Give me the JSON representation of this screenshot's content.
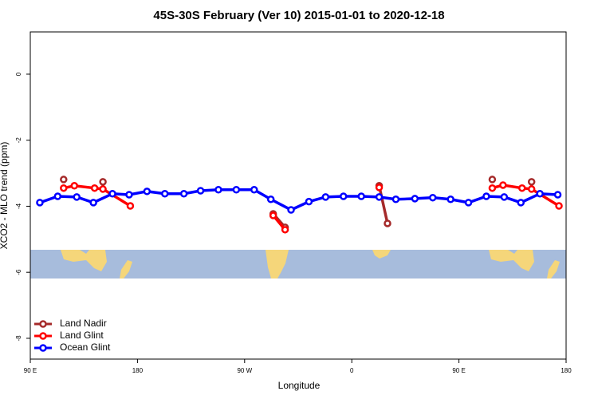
{
  "chart_data": {
    "type": "line",
    "title": "45S-30S February (Ver 10)   2015-01-01 to 2020-12-18",
    "x_label": "Longitude",
    "y_label": "XCO2 - MLO trend (ppm)",
    "xlim": [
      90,
      540
    ],
    "ylim": [
      -8.63,
      1.28
    ],
    "xticks": [
      {
        "value": 90,
        "label": "90 E"
      },
      {
        "value": 180,
        "label": "180"
      },
      {
        "value": 270,
        "label": "90 W"
      },
      {
        "value": 360,
        "label": "0"
      },
      {
        "value": 450,
        "label": "90 E"
      },
      {
        "value": 540,
        "label": "180"
      }
    ],
    "yticks": [
      -8,
      -6,
      -4,
      -2,
      0
    ],
    "legend": "bottom-left",
    "series": [
      {
        "name": "Land Nadir",
        "color": "#a52a2a",
        "x": [
          118,
          null,
          151,
          null,
          294,
          304,
          null,
          383,
          390,
          null,
          478,
          null,
          511
        ],
        "values": [
          -3.19,
          null,
          -3.26,
          null,
          -4.23,
          -4.64,
          null,
          -3.38,
          -4.52,
          null,
          -3.19,
          null,
          -3.26
        ]
      },
      {
        "name": "Land Glint",
        "color": "#ff0000",
        "x": [
          118,
          127,
          144,
          151,
          174,
          null,
          294,
          304,
          null,
          383,
          null,
          478,
          487,
          503,
          511,
          534
        ],
        "values": [
          -3.45,
          -3.38,
          -3.45,
          -3.48,
          -3.99,
          null,
          -4.28,
          -4.71,
          null,
          -3.43,
          null,
          -3.45,
          -3.36,
          -3.45,
          -3.48,
          -3.99
        ]
      },
      {
        "name": "Ocean Glint",
        "color": "#0000ff",
        "x": [
          98,
          113,
          129,
          143,
          159,
          173,
          188,
          203,
          219,
          233,
          248,
          263,
          278,
          292,
          309,
          324,
          338,
          353,
          368,
          383,
          397,
          413,
          428,
          443,
          458,
          473,
          488,
          502,
          518,
          533
        ],
        "values": [
          -3.89,
          -3.7,
          -3.72,
          -3.89,
          -3.62,
          -3.65,
          -3.55,
          -3.62,
          -3.62,
          -3.53,
          -3.5,
          -3.5,
          -3.5,
          -3.79,
          -4.11,
          -3.86,
          -3.72,
          -3.7,
          -3.7,
          -3.72,
          -3.79,
          -3.77,
          -3.74,
          -3.79,
          -3.89,
          -3.7,
          -3.72,
          -3.89,
          -3.62,
          -3.65
        ]
      }
    ]
  }
}
